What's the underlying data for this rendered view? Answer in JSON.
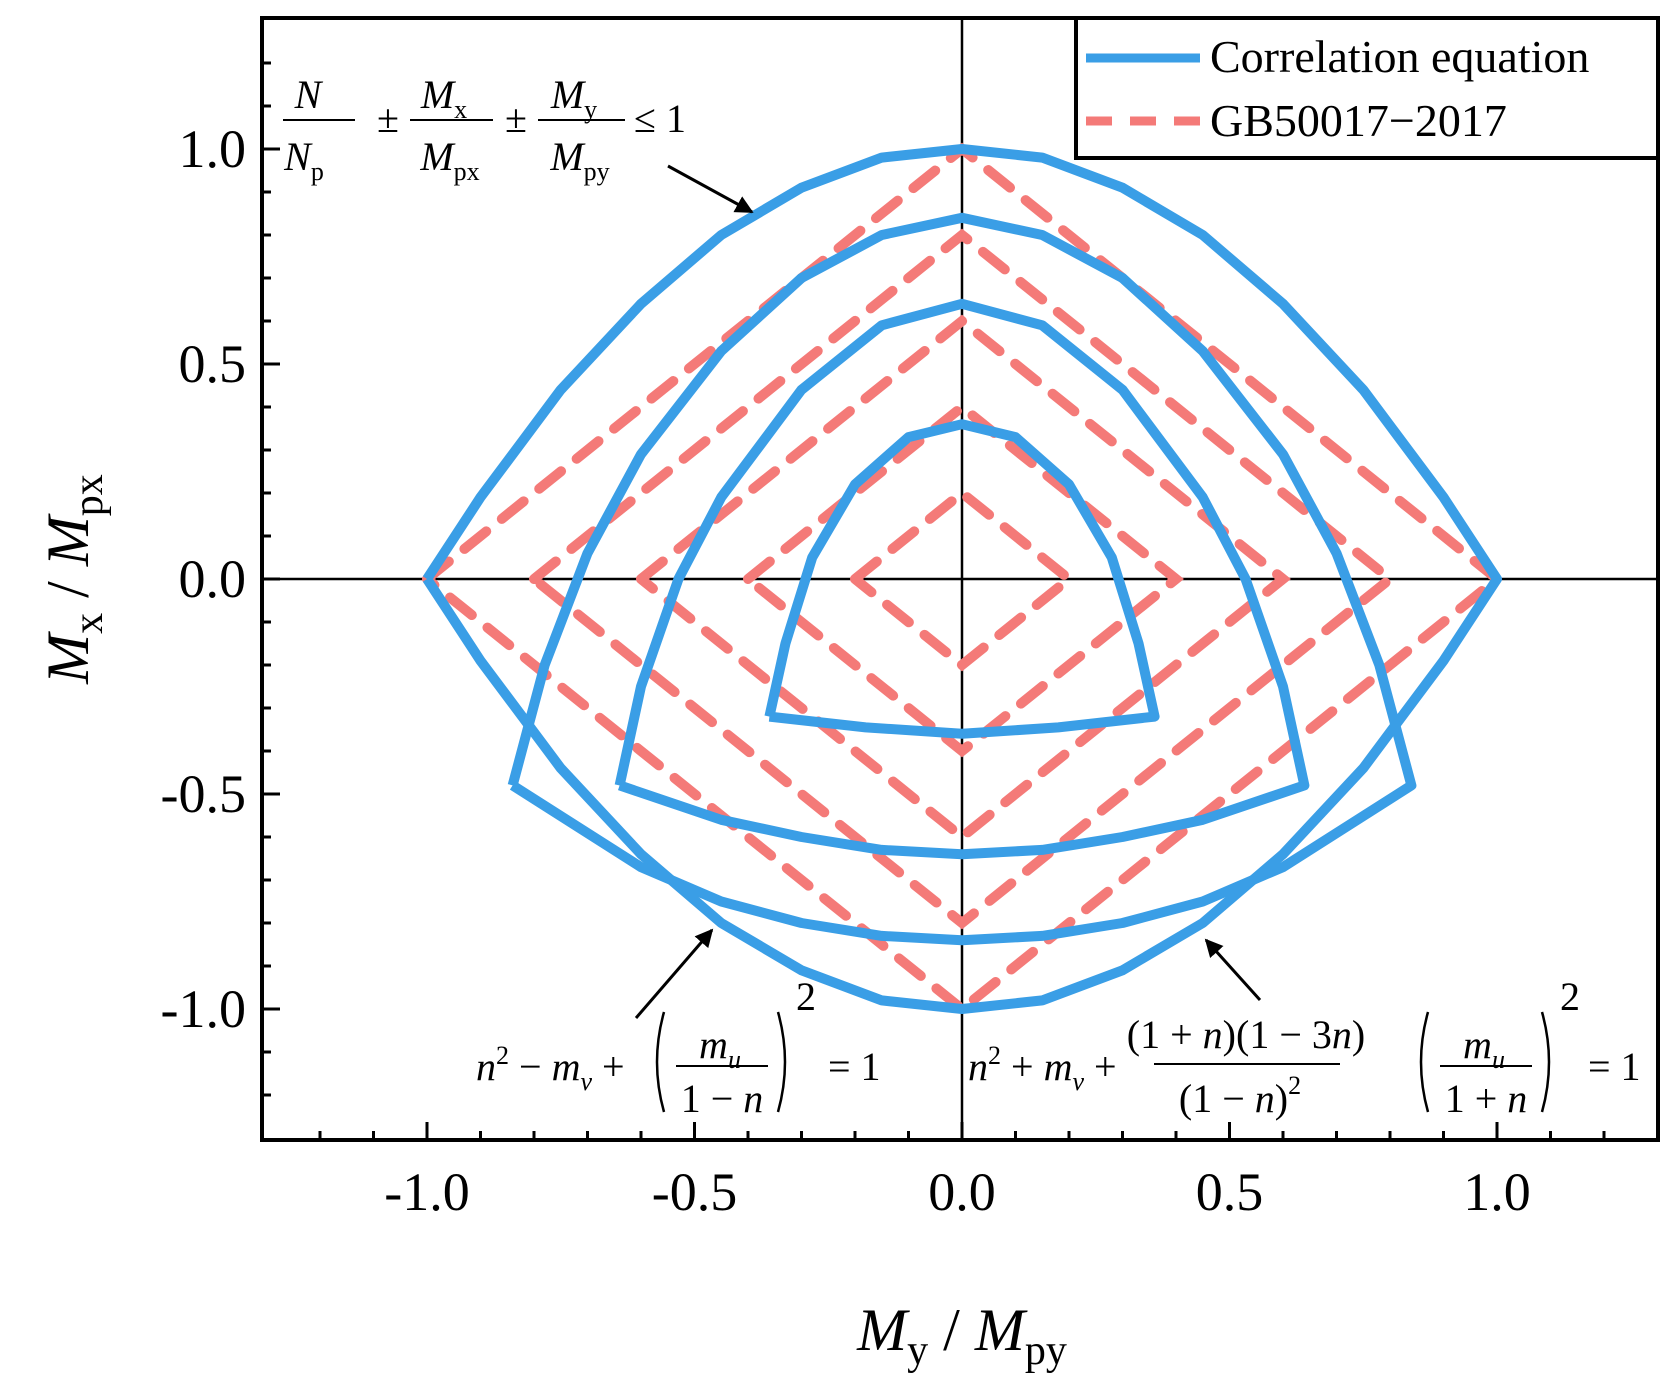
{
  "chart_data": {
    "type": "line",
    "xlabel": "My / Mpy",
    "ylabel": "Mx / Mpx",
    "xlim": [
      -1.3,
      1.3
    ],
    "ylim": [
      -1.3,
      1.3
    ],
    "xticks": [
      "-1.0",
      "-0.5",
      "0.0",
      "0.5",
      "1.0"
    ],
    "yticks": [
      "1.0",
      "0.5",
      "0.0",
      "-0.5",
      "-1.0"
    ],
    "legend_position": "top-right",
    "legend": [
      "Correlation equation",
      "GB50017−2017"
    ],
    "colors": {
      "correlation": "#3a9ee6",
      "gb": "#f47a78"
    },
    "series": [
      {
        "name": "Correlation equation",
        "style": "solid",
        "curves": [
          {
            "n": 0.0,
            "points": [
              [
                -1.0,
                0.0
              ],
              [
                -0.9,
                0.19
              ],
              [
                -0.75,
                0.44
              ],
              [
                -0.6,
                0.64
              ],
              [
                -0.45,
                0.8
              ],
              [
                -0.3,
                0.91
              ],
              [
                -0.15,
                0.98
              ],
              [
                0.0,
                1.0
              ],
              [
                0.15,
                0.98
              ],
              [
                0.3,
                0.91
              ],
              [
                0.45,
                0.8
              ],
              [
                0.6,
                0.64
              ],
              [
                0.75,
                0.44
              ],
              [
                0.9,
                0.19
              ],
              [
                1.0,
                0.0
              ],
              [
                0.9,
                -0.19
              ],
              [
                0.75,
                -0.44
              ],
              [
                0.6,
                -0.64
              ],
              [
                0.45,
                -0.8
              ],
              [
                0.3,
                -0.91
              ],
              [
                0.15,
                -0.98
              ],
              [
                0.0,
                -1.0
              ],
              [
                -0.15,
                -0.98
              ],
              [
                -0.3,
                -0.91
              ],
              [
                -0.45,
                -0.8
              ],
              [
                -0.6,
                -0.64
              ],
              [
                -0.75,
                -0.44
              ],
              [
                -0.9,
                -0.19
              ],
              [
                -1.0,
                0.0
              ]
            ]
          },
          {
            "n": 0.2,
            "points": [
              [
                -0.84,
                -0.48
              ],
              [
                -0.78,
                -0.2
              ],
              [
                -0.7,
                0.06
              ],
              [
                -0.6,
                0.29
              ],
              [
                -0.45,
                0.53
              ],
              [
                -0.3,
                0.7
              ],
              [
                -0.15,
                0.8
              ],
              [
                0.0,
                0.84
              ],
              [
                0.15,
                0.8
              ],
              [
                0.3,
                0.7
              ],
              [
                0.45,
                0.53
              ],
              [
                0.6,
                0.29
              ],
              [
                0.7,
                0.06
              ],
              [
                0.78,
                -0.2
              ],
              [
                0.84,
                -0.48
              ],
              [
                0.6,
                -0.67
              ],
              [
                0.45,
                -0.75
              ],
              [
                0.3,
                -0.8
              ],
              [
                0.15,
                -0.83
              ],
              [
                0.0,
                -0.84
              ],
              [
                -0.15,
                -0.83
              ],
              [
                -0.3,
                -0.8
              ],
              [
                -0.45,
                -0.75
              ],
              [
                -0.6,
                -0.67
              ],
              [
                -0.84,
                -0.48
              ]
            ]
          },
          {
            "n": 0.4,
            "points": [
              [
                -0.64,
                -0.48
              ],
              [
                -0.6,
                -0.25
              ],
              [
                -0.53,
                0.0
              ],
              [
                -0.45,
                0.19
              ],
              [
                -0.3,
                0.44
              ],
              [
                -0.15,
                0.59
              ],
              [
                0.0,
                0.64
              ],
              [
                0.15,
                0.59
              ],
              [
                0.3,
                0.44
              ],
              [
                0.45,
                0.19
              ],
              [
                0.53,
                0.0
              ],
              [
                0.6,
                -0.25
              ],
              [
                0.64,
                -0.48
              ],
              [
                0.45,
                -0.56
              ],
              [
                0.3,
                -0.6
              ],
              [
                0.15,
                -0.63
              ],
              [
                0.0,
                -0.64
              ],
              [
                -0.15,
                -0.63
              ],
              [
                -0.3,
                -0.6
              ],
              [
                -0.45,
                -0.56
              ],
              [
                -0.64,
                -0.48
              ]
            ]
          },
          {
            "n": 0.6,
            "points": [
              [
                -0.36,
                -0.32
              ],
              [
                -0.33,
                -0.15
              ],
              [
                -0.28,
                0.05
              ],
              [
                -0.2,
                0.22
              ],
              [
                -0.1,
                0.33
              ],
              [
                0.0,
                0.36
              ],
              [
                0.1,
                0.33
              ],
              [
                0.2,
                0.22
              ],
              [
                0.28,
                0.05
              ],
              [
                0.33,
                -0.15
              ],
              [
                0.36,
                -0.32
              ],
              [
                0.18,
                -0.345
              ],
              [
                0.0,
                -0.36
              ],
              [
                -0.18,
                -0.345
              ],
              [
                -0.36,
                -0.32
              ]
            ]
          }
        ]
      },
      {
        "name": "GB50017−2017",
        "style": "dashed",
        "diamonds_half_width": [
          1.0,
          0.8,
          0.6,
          0.4,
          0.2
        ]
      }
    ],
    "annotations": {
      "top_left": "N/Np ± Mx/Mpx ± My/Mpy ≤ 1",
      "bottom_left": "n² − mv + (mu/(1−n))² = 1",
      "bottom_right": "n² + mv + (1+n)(1−3n)/(1−n)² · (mu/(1+n))² = 1"
    }
  }
}
